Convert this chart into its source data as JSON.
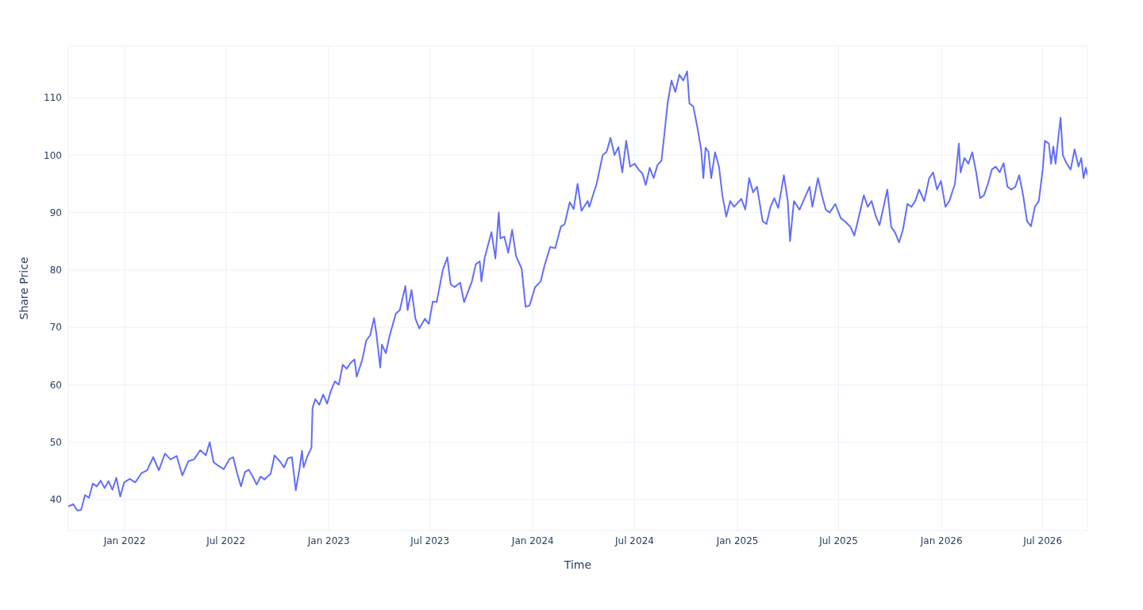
{
  "chart_data": {
    "type": "line",
    "xlabel": "Time",
    "ylabel": "Share Price",
    "grid": true,
    "marker": "none",
    "line_style": "solid",
    "xlim": [
      "2021-09-22",
      "2026-09-19"
    ],
    "xticks": [
      {
        "value": "2022-01-01",
        "label": "Jan 2022"
      },
      {
        "value": "2022-07-01",
        "label": "Jul 2022"
      },
      {
        "value": "2023-01-01",
        "label": "Jan 2023"
      },
      {
        "value": "2023-07-01",
        "label": "Jul 2023"
      },
      {
        "value": "2024-01-01",
        "label": "Jan 2024"
      },
      {
        "value": "2024-07-01",
        "label": "Jul 2024"
      },
      {
        "value": "2025-01-01",
        "label": "Jan 2025"
      },
      {
        "value": "2025-07-01",
        "label": "Jul 2025"
      },
      {
        "value": "2026-01-01",
        "label": "Jan 2026"
      },
      {
        "value": "2026-07-01",
        "label": "Jul 2026"
      }
    ],
    "ylim": [
      34.6,
      119
    ],
    "yticks": [
      40,
      50,
      60,
      70,
      80,
      90,
      100,
      110
    ],
    "x": [
      "2021-09-22",
      "2021-10-01",
      "2021-10-08",
      "2021-10-15",
      "2021-10-22",
      "2021-10-29",
      "2021-11-05",
      "2021-11-12",
      "2021-11-19",
      "2021-11-26",
      "2021-12-03",
      "2021-12-10",
      "2021-12-17",
      "2021-12-24",
      "2021-12-31",
      "2022-01-10",
      "2022-01-20",
      "2022-01-31",
      "2022-02-10",
      "2022-02-21",
      "2022-03-03",
      "2022-03-14",
      "2022-03-24",
      "2022-04-04",
      "2022-04-14",
      "2022-04-25",
      "2022-05-05",
      "2022-05-16",
      "2022-05-26",
      "2022-06-02",
      "2022-06-09",
      "2022-06-16",
      "2022-06-27",
      "2022-07-07",
      "2022-07-14",
      "2022-07-21",
      "2022-07-28",
      "2022-08-04",
      "2022-08-11",
      "2022-08-18",
      "2022-08-25",
      "2022-09-01",
      "2022-09-08",
      "2022-09-19",
      "2022-09-26",
      "2022-10-06",
      "2022-10-13",
      "2022-10-20",
      "2022-10-27",
      "2022-11-03",
      "2022-11-10",
      "2022-11-14",
      "2022-11-17",
      "2022-11-24",
      "2022-12-01",
      "2022-12-03",
      "2022-12-08",
      "2022-12-15",
      "2022-12-22",
      "2022-12-29",
      "2023-01-05",
      "2023-01-12",
      "2023-01-19",
      "2023-01-26",
      "2023-02-02",
      "2023-02-09",
      "2023-02-16",
      "2023-02-20",
      "2023-03-02",
      "2023-03-09",
      "2023-03-16",
      "2023-03-23",
      "2023-03-27",
      "2023-04-03",
      "2023-04-06",
      "2023-04-13",
      "2023-04-20",
      "2023-05-01",
      "2023-05-08",
      "2023-05-18",
      "2023-05-22",
      "2023-05-29",
      "2023-06-05",
      "2023-06-12",
      "2023-06-22",
      "2023-06-29",
      "2023-07-06",
      "2023-07-13",
      "2023-07-24",
      "2023-08-01",
      "2023-08-07",
      "2023-08-14",
      "2023-08-24",
      "2023-08-31",
      "2023-09-07",
      "2023-09-14",
      "2023-09-21",
      "2023-09-28",
      "2023-10-01",
      "2023-10-07",
      "2023-10-19",
      "2023-10-26",
      "2023-11-01",
      "2023-11-04",
      "2023-11-11",
      "2023-11-18",
      "2023-11-25",
      "2023-12-02",
      "2023-12-12",
      "2023-12-19",
      "2023-12-26",
      "2024-01-05",
      "2024-01-15",
      "2024-01-22",
      "2024-02-01",
      "2024-02-10",
      "2024-02-20",
      "2024-02-27",
      "2024-03-07",
      "2024-03-14",
      "2024-03-21",
      "2024-03-28",
      "2024-04-08",
      "2024-04-11",
      "2024-04-24",
      "2024-05-05",
      "2024-05-12",
      "2024-05-19",
      "2024-05-26",
      "2024-06-02",
      "2024-06-09",
      "2024-06-16",
      "2024-06-23",
      "2024-07-01",
      "2024-07-08",
      "2024-07-15",
      "2024-07-21",
      "2024-07-28",
      "2024-08-04",
      "2024-08-11",
      "2024-08-18",
      "2024-08-22",
      "2024-08-29",
      "2024-09-05",
      "2024-09-12",
      "2024-09-19",
      "2024-09-26",
      "2024-10-03",
      "2024-10-07",
      "2024-10-14",
      "2024-10-21",
      "2024-10-28",
      "2024-11-01",
      "2024-11-05",
      "2024-11-10",
      "2024-11-15",
      "2024-11-22",
      "2024-11-29",
      "2024-12-05",
      "2024-12-12",
      "2024-12-19",
      "2024-12-26",
      "2025-01-08",
      "2025-01-15",
      "2025-01-22",
      "2025-01-29",
      "2025-02-05",
      "2025-02-15",
      "2025-02-22",
      "2025-03-01",
      "2025-03-08",
      "2025-03-15",
      "2025-03-25",
      "2025-04-01",
      "2025-04-05",
      "2025-04-12",
      "2025-04-22",
      "2025-05-01",
      "2025-05-10",
      "2025-05-15",
      "2025-05-25",
      "2025-06-01",
      "2025-06-08",
      "2025-06-15",
      "2025-06-25",
      "2025-07-05",
      "2025-07-12",
      "2025-07-22",
      "2025-07-29",
      "2025-08-05",
      "2025-08-15",
      "2025-08-22",
      "2025-08-29",
      "2025-09-05",
      "2025-09-12",
      "2025-09-19",
      "2025-09-26",
      "2025-10-03",
      "2025-10-10",
      "2025-10-17",
      "2025-10-24",
      "2025-11-01",
      "2025-11-08",
      "2025-11-15",
      "2025-11-22",
      "2025-12-01",
      "2025-12-10",
      "2025-12-17",
      "2025-12-24",
      "2025-12-31",
      "2026-01-08",
      "2026-01-15",
      "2026-01-25",
      "2026-02-01",
      "2026-02-04",
      "2026-02-11",
      "2026-02-18",
      "2026-02-25",
      "2026-03-04",
      "2026-03-11",
      "2026-03-18",
      "2026-03-25",
      "2026-04-01",
      "2026-04-08",
      "2026-04-15",
      "2026-04-22",
      "2026-04-29",
      "2026-05-06",
      "2026-05-13",
      "2026-05-20",
      "2026-05-27",
      "2026-06-03",
      "2026-06-10",
      "2026-06-17",
      "2026-06-24",
      "2026-07-01",
      "2026-07-05",
      "2026-07-12",
      "2026-07-16",
      "2026-07-20",
      "2026-07-24",
      "2026-07-30",
      "2026-08-02",
      "2026-08-06",
      "2026-08-13",
      "2026-08-20",
      "2026-08-27",
      "2026-09-03",
      "2026-09-08",
      "2026-09-12",
      "2026-09-16",
      "2026-09-19"
    ],
    "series": [
      {
        "color": "#636efa",
        "values": [
          38.8,
          39.2,
          38.1,
          38.2,
          40.8,
          40.3,
          42.8,
          42.3,
          43.3,
          42.0,
          43.2,
          41.7,
          43.8,
          40.5,
          43.0,
          43.6,
          43.0,
          44.6,
          45.1,
          47.4,
          45.1,
          48.0,
          47.0,
          47.6,
          44.2,
          46.7,
          47.0,
          48.6,
          47.7,
          50.0,
          46.5,
          46.0,
          45.3,
          47.0,
          47.4,
          44.6,
          42.3,
          44.8,
          45.2,
          44.0,
          42.6,
          44.0,
          43.5,
          44.5,
          47.7,
          46.6,
          45.6,
          47.2,
          47.4,
          41.6,
          45.6,
          48.5,
          45.6,
          47.6,
          49.0,
          56.0,
          57.5,
          56.5,
          58.3,
          56.7,
          59.0,
          60.6,
          60.0,
          63.5,
          62.8,
          63.8,
          64.4,
          61.4,
          64.4,
          67.7,
          68.6,
          71.6,
          69.0,
          63.0,
          67.0,
          65.5,
          68.6,
          72.4,
          73.0,
          77.2,
          73.0,
          76.5,
          71.5,
          69.8,
          71.5,
          70.6,
          74.5,
          74.4,
          80.0,
          82.2,
          77.5,
          77.0,
          77.8,
          74.4,
          76.2,
          78.0,
          81.0,
          81.5,
          78.0,
          82.2,
          86.6,
          82.0,
          90.0,
          85.5,
          85.8,
          83.0,
          87.0,
          82.4,
          80.2,
          73.6,
          73.8,
          77.0,
          78.0,
          80.8,
          84.0,
          83.8,
          87.5,
          88.0,
          91.8,
          90.6,
          95.0,
          90.3,
          92.0,
          91.0,
          95.0,
          100.0,
          100.6,
          103.0,
          100.0,
          101.4,
          97.0,
          102.5,
          98.0,
          98.5,
          97.5,
          96.8,
          94.8,
          97.8,
          96.0,
          98.3,
          99.0,
          102.5,
          109.0,
          113.0,
          111.0,
          114.0,
          113.0,
          114.6,
          109.0,
          108.5,
          105.0,
          101.0,
          96.0,
          101.3,
          100.6,
          96.0,
          100.5,
          98.0,
          93.0,
          89.3,
          92.0,
          91.0,
          92.4,
          90.5,
          96.0,
          93.5,
          94.5,
          88.5,
          88.0,
          91.0,
          92.5,
          90.8,
          96.5,
          92.0,
          85.0,
          92.0,
          90.5,
          92.5,
          94.5,
          91.0,
          96.0,
          93.0,
          90.5,
          90.0,
          91.5,
          89.0,
          88.5,
          87.5,
          86.0,
          88.8,
          93.0,
          91.0,
          92.0,
          89.5,
          87.8,
          90.8,
          94.0,
          87.5,
          86.5,
          84.8,
          87.0,
          91.5,
          91.0,
          92.0,
          94.0,
          92.0,
          96.0,
          97.0,
          94.0,
          95.5,
          91.0,
          92.0,
          95.0,
          102.0,
          97.0,
          99.5,
          98.5,
          100.5,
          97.0,
          92.5,
          93.0,
          95.0,
          97.5,
          98.0,
          97.0,
          98.6,
          94.5,
          94.0,
          94.5,
          96.5,
          93.0,
          88.5,
          87.6,
          91.0,
          92.0,
          97.5,
          102.5,
          102.0,
          98.5,
          101.5,
          98.5,
          104.0,
          106.5,
          100.0,
          98.5,
          97.5,
          101.0,
          98.0,
          99.5,
          96.0,
          97.8,
          96.5
        ]
      }
    ]
  }
}
